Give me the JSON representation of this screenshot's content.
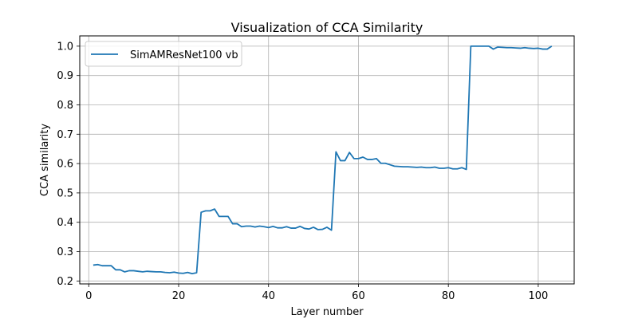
{
  "chart_data": {
    "type": "line",
    "title": "Visualization of CCA Similarity",
    "xlabel": "Layer number",
    "ylabel": "CCA similarity",
    "xlim": [
      -2,
      108
    ],
    "ylim": [
      0.19,
      1.035
    ],
    "xticks": [
      0,
      20,
      40,
      60,
      80,
      100
    ],
    "yticks": [
      0.2,
      0.3,
      0.4,
      0.5,
      0.6,
      0.7,
      0.8,
      0.9,
      1.0
    ],
    "xtick_labels": [
      "0",
      "20",
      "40",
      "60",
      "80",
      "100"
    ],
    "ytick_labels": [
      "0.2",
      "0.3",
      "0.4",
      "0.5",
      "0.6",
      "0.7",
      "0.8",
      "0.9",
      "1.0"
    ],
    "grid": true,
    "legend_position": "top-left",
    "series": [
      {
        "name": "SimAMResNet100 vb",
        "color": "#1f77b4",
        "x": [
          1,
          2,
          3,
          4,
          5,
          6,
          7,
          8,
          9,
          10,
          11,
          12,
          13,
          14,
          15,
          16,
          17,
          18,
          19,
          20,
          21,
          22,
          23,
          24,
          25,
          26,
          27,
          28,
          29,
          30,
          31,
          32,
          33,
          34,
          35,
          36,
          37,
          38,
          39,
          40,
          41,
          42,
          43,
          44,
          45,
          46,
          47,
          48,
          49,
          50,
          51,
          52,
          53,
          54,
          55,
          56,
          57,
          58,
          59,
          60,
          61,
          62,
          63,
          64,
          65,
          66,
          67,
          68,
          69,
          70,
          71,
          72,
          73,
          74,
          75,
          76,
          77,
          78,
          79,
          80,
          81,
          82,
          83,
          84,
          85,
          86,
          87,
          88,
          89,
          90,
          91,
          92,
          93,
          94,
          95,
          96,
          97,
          98,
          99,
          100,
          101,
          102,
          103
        ],
        "values": [
          0.254,
          0.256,
          0.252,
          0.252,
          0.252,
          0.238,
          0.238,
          0.231,
          0.235,
          0.235,
          0.233,
          0.231,
          0.233,
          0.232,
          0.231,
          0.231,
          0.229,
          0.228,
          0.23,
          0.227,
          0.226,
          0.229,
          0.225,
          0.228,
          0.434,
          0.439,
          0.439,
          0.445,
          0.42,
          0.42,
          0.42,
          0.395,
          0.395,
          0.385,
          0.387,
          0.387,
          0.384,
          0.387,
          0.385,
          0.382,
          0.386,
          0.381,
          0.381,
          0.385,
          0.38,
          0.38,
          0.386,
          0.379,
          0.377,
          0.383,
          0.375,
          0.376,
          0.383,
          0.373,
          0.64,
          0.61,
          0.61,
          0.638,
          0.617,
          0.617,
          0.622,
          0.614,
          0.614,
          0.617,
          0.601,
          0.601,
          0.596,
          0.591,
          0.59,
          0.589,
          0.589,
          0.588,
          0.587,
          0.588,
          0.586,
          0.586,
          0.588,
          0.584,
          0.584,
          0.586,
          0.582,
          0.582,
          0.586,
          0.58,
          1.0,
          1.0,
          1.0,
          1.0,
          1.0,
          0.99,
          0.997,
          0.996,
          0.995,
          0.995,
          0.994,
          0.993,
          0.995,
          0.993,
          0.992,
          0.993,
          0.99,
          0.99,
          1.0
        ]
      }
    ]
  }
}
